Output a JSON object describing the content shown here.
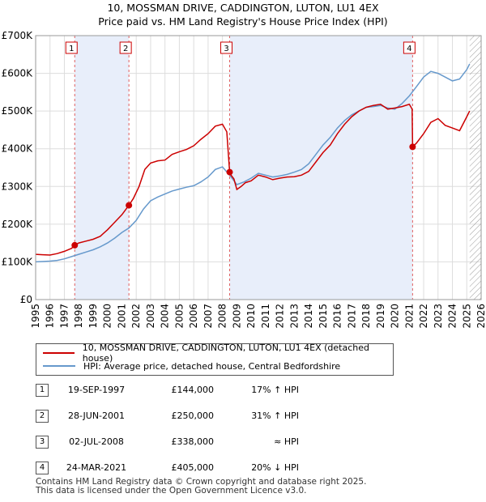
{
  "chart_data": {
    "type": "line",
    "title": "10, MOSSMAN DRIVE, CADDINGTON, LUTON, LU1 4EX",
    "subtitle": "Price paid vs. HM Land Registry's House Price Index (HPI)",
    "xlabel": "",
    "ylabel": "",
    "xlim": [
      1995,
      2026
    ],
    "ylim": [
      0,
      700000
    ],
    "y_ticks": [
      {
        "value": 0,
        "label": "£0"
      },
      {
        "value": 100000,
        "label": "£100K"
      },
      {
        "value": 200000,
        "label": "£200K"
      },
      {
        "value": 300000,
        "label": "£300K"
      },
      {
        "value": 400000,
        "label": "£400K"
      },
      {
        "value": 500000,
        "label": "£500K"
      },
      {
        "value": 600000,
        "label": "£600K"
      },
      {
        "value": 700000,
        "label": "£700K"
      }
    ],
    "x_ticks": [
      "1995",
      "1996",
      "1997",
      "1998",
      "1999",
      "2000",
      "2001",
      "2002",
      "2003",
      "2004",
      "2005",
      "2006",
      "2007",
      "2008",
      "2009",
      "2010",
      "2011",
      "2012",
      "2013",
      "2014",
      "2015",
      "2016",
      "2017",
      "2018",
      "2019",
      "2020",
      "2021",
      "2022",
      "2023",
      "2024",
      "2025",
      "2026"
    ],
    "grid": true,
    "series": [
      {
        "name": "10, MOSSMAN DRIVE, CADDINGTON, LUTON, LU1 4EX (detached house)",
        "color": "#cc0000",
        "x": [
          1995.0,
          1995.5,
          1996.0,
          1996.5,
          1997.0,
          1997.5,
          1997.72,
          1998.0,
          1998.5,
          1999.0,
          1999.5,
          2000.0,
          2000.5,
          2001.0,
          2001.49,
          2001.8,
          2002.2,
          2002.6,
          2003.0,
          2003.5,
          2004.0,
          2004.5,
          2005.0,
          2005.5,
          2006.0,
          2006.5,
          2007.0,
          2007.5,
          2008.0,
          2008.3,
          2008.5,
          2008.6,
          2008.8,
          2009.0,
          2009.3,
          2009.6,
          2010.0,
          2010.5,
          2011.0,
          2011.5,
          2012.0,
          2012.5,
          2013.0,
          2013.5,
          2014.0,
          2014.5,
          2015.0,
          2015.5,
          2016.0,
          2016.5,
          2017.0,
          2017.5,
          2018.0,
          2018.5,
          2019.0,
          2019.5,
          2020.0,
          2020.5,
          2021.0,
          2021.2,
          2021.23,
          2021.5,
          2022.0,
          2022.5,
          2023.0,
          2023.5,
          2024.0,
          2024.5,
          2025.0,
          2025.2
        ],
        "values": [
          120000,
          119000,
          118000,
          122000,
          128000,
          136000,
          144000,
          150000,
          155000,
          160000,
          168000,
          185000,
          205000,
          225000,
          250000,
          268000,
          300000,
          345000,
          362000,
          368000,
          370000,
          385000,
          392000,
          398000,
          408000,
          425000,
          440000,
          460000,
          465000,
          445000,
          338000,
          330000,
          320000,
          292000,
          300000,
          310000,
          315000,
          330000,
          325000,
          318000,
          322000,
          325000,
          326000,
          330000,
          340000,
          365000,
          390000,
          410000,
          440000,
          465000,
          485000,
          500000,
          510000,
          515000,
          518000,
          505000,
          508000,
          512000,
          518000,
          505000,
          405000,
          415000,
          440000,
          470000,
          480000,
          462000,
          455000,
          448000,
          485000,
          500000
        ]
      },
      {
        "name": "HPI: Average price, detached house, Central Bedfordshire",
        "color": "#6699cc",
        "x": [
          1995.0,
          1995.5,
          1996.0,
          1996.5,
          1997.0,
          1997.5,
          1998.0,
          1998.5,
          1999.0,
          1999.5,
          2000.0,
          2000.5,
          2001.0,
          2001.5,
          2002.0,
          2002.5,
          2003.0,
          2003.5,
          2004.0,
          2004.5,
          2005.0,
          2005.5,
          2006.0,
          2006.5,
          2007.0,
          2007.5,
          2008.0,
          2008.5,
          2009.0,
          2009.5,
          2010.0,
          2010.5,
          2011.0,
          2011.5,
          2012.0,
          2012.5,
          2013.0,
          2013.5,
          2014.0,
          2014.5,
          2015.0,
          2015.5,
          2016.0,
          2016.5,
          2017.0,
          2017.5,
          2018.0,
          2018.5,
          2019.0,
          2019.5,
          2020.0,
          2020.5,
          2021.0,
          2021.5,
          2022.0,
          2022.5,
          2023.0,
          2023.5,
          2024.0,
          2024.5,
          2025.0,
          2025.2
        ],
        "values": [
          100000,
          101000,
          102000,
          104000,
          108000,
          114000,
          120000,
          126000,
          132000,
          140000,
          150000,
          163000,
          178000,
          190000,
          210000,
          240000,
          262000,
          272000,
          280000,
          288000,
          293000,
          298000,
          302000,
          312000,
          325000,
          345000,
          352000,
          330000,
          305000,
          312000,
          322000,
          335000,
          330000,
          325000,
          328000,
          332000,
          338000,
          345000,
          360000,
          385000,
          410000,
          430000,
          455000,
          475000,
          490000,
          500000,
          510000,
          512000,
          515000,
          508000,
          505000,
          520000,
          540000,
          565000,
          590000,
          605000,
          600000,
          590000,
          580000,
          585000,
          610000,
          625000
        ]
      }
    ],
    "transactions": [
      {
        "label": "1",
        "x": 1997.72,
        "price": 144000
      },
      {
        "label": "2",
        "x": 2001.49,
        "price": 250000
      },
      {
        "label": "3",
        "x": 2008.5,
        "price": 338000
      },
      {
        "label": "4",
        "x": 2021.23,
        "price": 405000
      }
    ]
  },
  "legend": [
    {
      "label": "10, MOSSMAN DRIVE, CADDINGTON, LUTON, LU1 4EX (detached house)",
      "color": "#cc0000"
    },
    {
      "label": "HPI: Average price, detached house, Central Bedfordshire",
      "color": "#6699cc"
    }
  ],
  "table": [
    {
      "num": "1",
      "date": "19-SEP-1997",
      "price": "£144,000",
      "hpi": "17% ↑ HPI"
    },
    {
      "num": "2",
      "date": "28-JUN-2001",
      "price": "£250,000",
      "hpi": "31% ↑ HPI"
    },
    {
      "num": "3",
      "date": "02-JUL-2008",
      "price": "£338,000",
      "hpi": "≈ HPI"
    },
    {
      "num": "4",
      "date": "24-MAR-2021",
      "price": "£405,000",
      "hpi": "20% ↓ HPI"
    }
  ],
  "footer": {
    "line1": "Contains HM Land Registry data © Crown copyright and database right 2025.",
    "line2": "This data is licensed under the Open Government Licence v3.0."
  }
}
